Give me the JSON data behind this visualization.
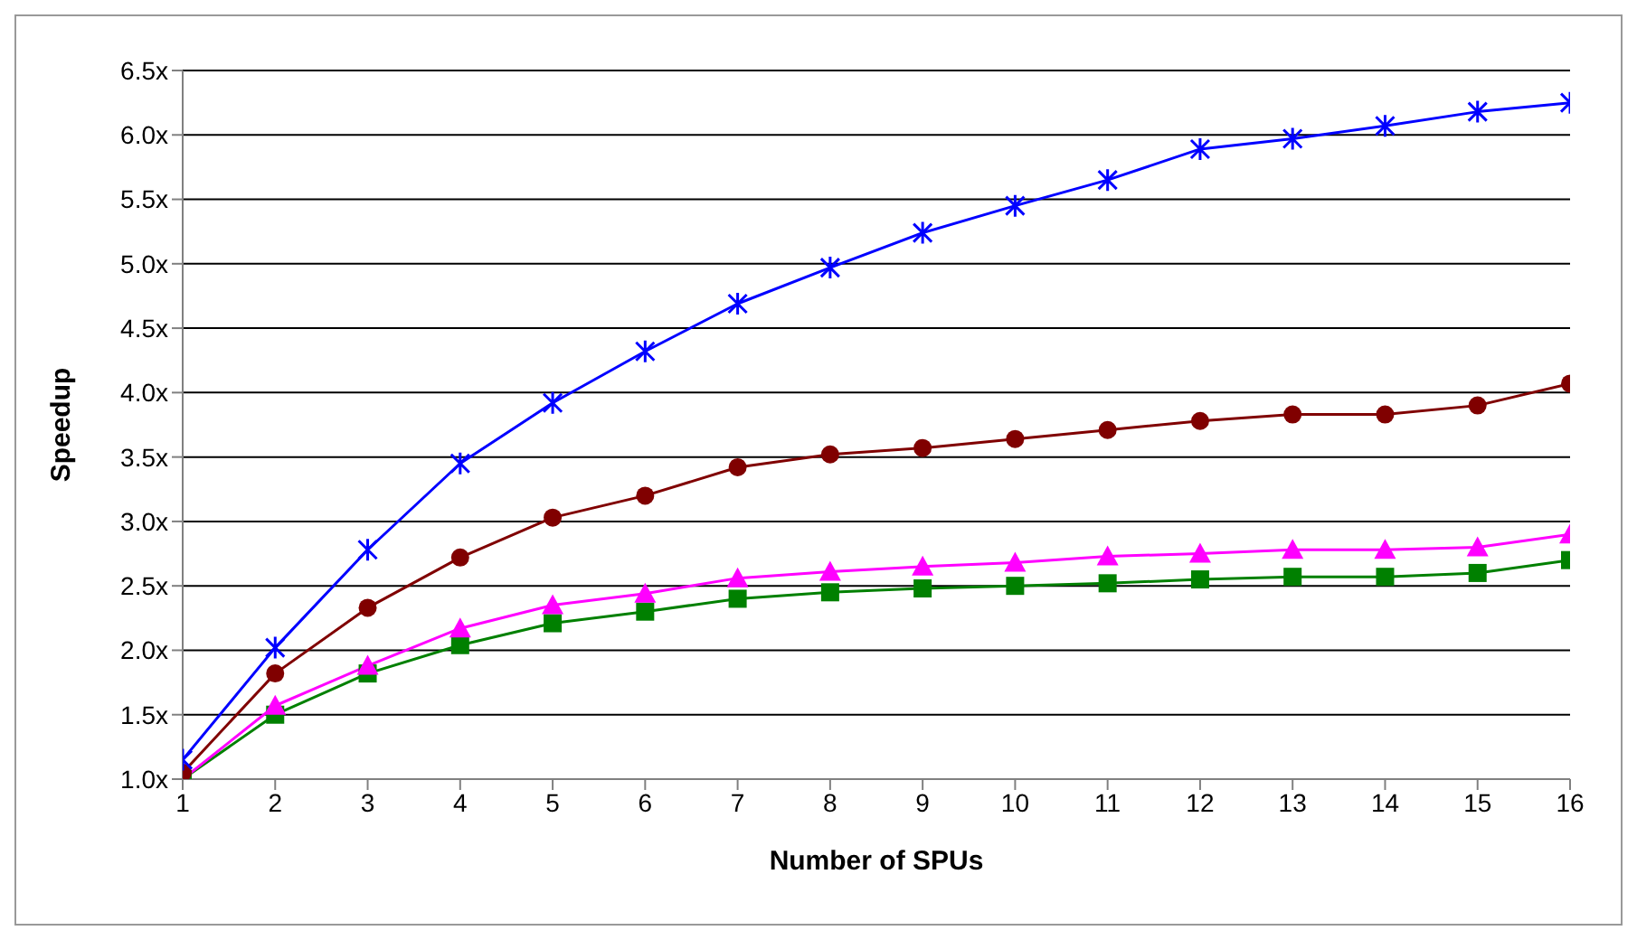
{
  "chart_data": {
    "type": "line",
    "xlabel": "Number of SPUs",
    "ylabel": "Speedup",
    "x": [
      1,
      2,
      3,
      4,
      5,
      6,
      7,
      8,
      9,
      10,
      11,
      12,
      13,
      14,
      15,
      16
    ],
    "series": [
      {
        "color": "#0000ff",
        "marker": "cross",
        "values": [
          1.15,
          2.02,
          2.78,
          3.45,
          3.92,
          4.32,
          4.69,
          4.97,
          5.24,
          5.45,
          5.65,
          5.89,
          5.97,
          6.07,
          6.18,
          6.25
        ]
      },
      {
        "color": "#800000",
        "marker": "circle",
        "values": [
          1.05,
          1.82,
          2.33,
          2.72,
          3.03,
          3.2,
          3.42,
          3.52,
          3.57,
          3.64,
          3.71,
          3.78,
          3.83,
          3.83,
          3.9,
          4.07
        ]
      },
      {
        "color": "#ff00ff",
        "marker": "triangle",
        "values": [
          1.0,
          1.57,
          1.88,
          2.17,
          2.35,
          2.44,
          2.56,
          2.61,
          2.65,
          2.68,
          2.73,
          2.75,
          2.78,
          2.78,
          2.8,
          2.9
        ]
      },
      {
        "color": "#008000",
        "marker": "square",
        "values": [
          1.0,
          1.5,
          1.82,
          2.04,
          2.21,
          2.3,
          2.4,
          2.45,
          2.48,
          2.5,
          2.52,
          2.55,
          2.57,
          2.57,
          2.6,
          2.7
        ]
      }
    ],
    "xlim": [
      1,
      16
    ],
    "xticks": [
      1,
      2,
      3,
      4,
      5,
      6,
      7,
      8,
      9,
      10,
      11,
      12,
      13,
      14,
      15,
      16
    ],
    "ylim": [
      1.0,
      6.5
    ],
    "yticks": [
      {
        "value": 1.0,
        "label": "1.0x"
      },
      {
        "value": 1.5,
        "label": "1.5x"
      },
      {
        "value": 2.0,
        "label": "2.0x"
      },
      {
        "value": 2.5,
        "label": "2.5x"
      },
      {
        "value": 3.0,
        "label": "3.0x"
      },
      {
        "value": 3.5,
        "label": "3.5x"
      },
      {
        "value": 4.0,
        "label": "4.0x"
      },
      {
        "value": 4.5,
        "label": "4.5x"
      },
      {
        "value": 5.0,
        "label": "5.0x"
      },
      {
        "value": 5.5,
        "label": "5.5x"
      },
      {
        "value": 6.0,
        "label": "6.0x"
      },
      {
        "value": 6.5,
        "label": "6.5x"
      }
    ],
    "grid": "y",
    "legend": false,
    "line_style": "solid"
  }
}
